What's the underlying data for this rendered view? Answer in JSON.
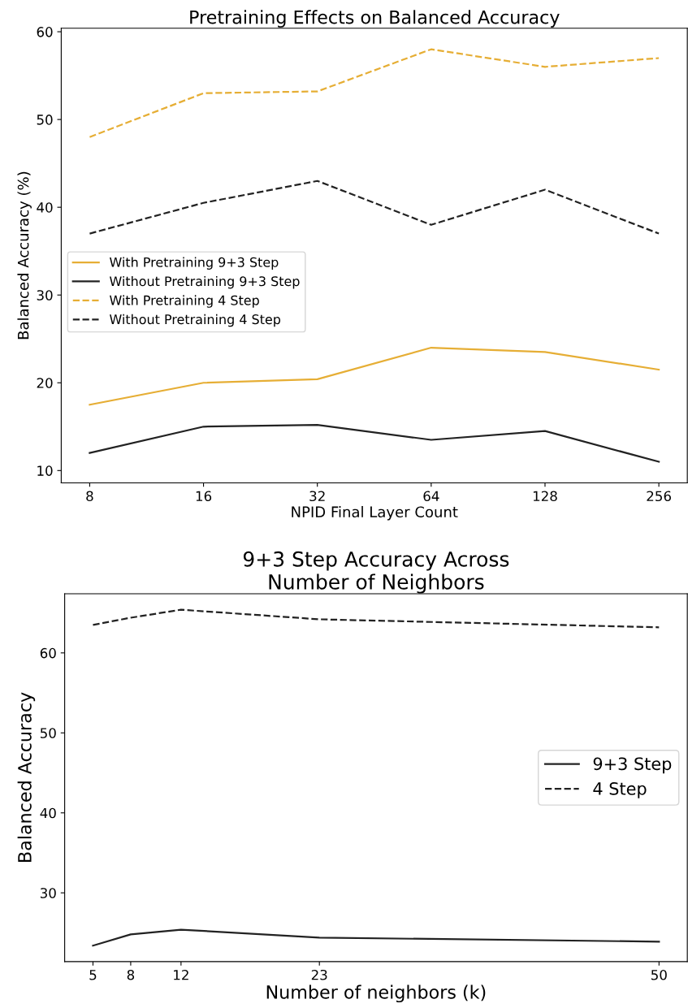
{
  "chart_data": [
    {
      "type": "line",
      "title": "Pretraining Effects on Balanced Accuracy",
      "xlabel": "NPID Final Layer Count",
      "ylabel": "Balanced Accuracy (%)",
      "categories": [
        "8",
        "16",
        "32",
        "64",
        "128",
        "256"
      ],
      "series": [
        {
          "name": "With Pretraining 9+3 Step",
          "color": "#e6ae35",
          "line_style": "solid",
          "values": [
            17.5,
            20.0,
            20.4,
            24.0,
            23.5,
            21.5
          ]
        },
        {
          "name": "Without Pretraining 9+3 Step",
          "color": "#222222",
          "line_style": "solid",
          "values": [
            12.0,
            15.0,
            15.2,
            13.5,
            14.5,
            11.0
          ]
        },
        {
          "name": "With Pretraining 4 Step",
          "color": "#e6ae35",
          "line_style": "dashed",
          "values": [
            48.0,
            53.0,
            53.2,
            58.0,
            56.0,
            57.0
          ]
        },
        {
          "name": "Without Pretraining 4 Step",
          "color": "#222222",
          "line_style": "dashed",
          "values": [
            37.0,
            40.5,
            43.0,
            38.0,
            42.0,
            37.0
          ]
        }
      ],
      "ylim": [
        8.6,
        60.4
      ],
      "yticks": [
        10,
        20,
        30,
        40,
        50,
        60
      ],
      "legend": "center left",
      "grid": false
    },
    {
      "type": "line",
      "title": "9+3 Step Accuracy Across\nNumber of Neighbors",
      "xlabel": "Number of neighbors (k)",
      "ylabel": "Balanced Accuracy",
      "x": [
        5,
        8,
        12,
        23,
        50
      ],
      "series": [
        {
          "name": "9+3 Step",
          "color": "#222222",
          "line_style": "solid",
          "values": [
            23.4,
            24.8,
            25.4,
            24.4,
            23.9
          ]
        },
        {
          "name": "4 Step",
          "color": "#222222",
          "line_style": "dashed",
          "values": [
            63.5,
            64.4,
            65.4,
            64.2,
            63.2
          ]
        }
      ],
      "xlim": [
        2.75,
        52.25
      ],
      "xticks": [
        5,
        8,
        12,
        23,
        50
      ],
      "ylim": [
        21.4,
        67.4
      ],
      "yticks": [
        30,
        40,
        50,
        60
      ],
      "legend": "center right",
      "grid": false
    }
  ]
}
